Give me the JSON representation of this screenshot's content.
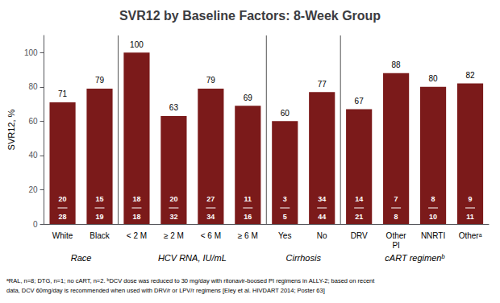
{
  "chart_data": {
    "type": "bar",
    "title": "SVR12 by Baseline Factors: 8-Week Group",
    "ylabel": "SVR12, %",
    "categories": [
      "White",
      "Black",
      "< 2 M",
      "≥ 2 M",
      "< 6 M",
      "≥ 6 M",
      "Yes",
      "No",
      "DRV",
      "Other\nPI",
      "NNRTI",
      "Otherᵃ"
    ],
    "values": [
      71,
      79,
      100,
      63,
      79,
      69,
      60,
      77,
      67,
      88,
      80,
      82
    ],
    "numerators": [
      20,
      15,
      18,
      20,
      27,
      11,
      3,
      34,
      14,
      7,
      8,
      9
    ],
    "denominators": [
      28,
      19,
      18,
      32,
      34,
      16,
      5,
      44,
      21,
      8,
      10,
      11
    ],
    "groups": [
      {
        "label": "Race",
        "categories": [
          "White",
          "Black"
        ]
      },
      {
        "label": "HCV RNA, IU/mL",
        "categories": [
          "< 2 M",
          "≥ 2 M",
          "< 6 M",
          "≥ 6 M"
        ]
      },
      {
        "label": "Cirrhosis",
        "categories": [
          "Yes",
          "No"
        ]
      },
      {
        "label": "cART regimenᵇ",
        "categories": [
          "DRV",
          "Other\nPI",
          "NNRTI",
          "Otherᵃ"
        ]
      }
    ],
    "footnote": [
      "ᵃRAL, n=8; DTG, n=1; no cART, n=2. ᵇDCV dose was reduced to 30 mg/day with ritonavir-boosed PI regimens in ALLY-2; based on recent",
      "data, DCV 60mg/day is recommended when used with DRV/r or LPV/r regimens [Eley et al. HIVDART 2014; Poster 63]"
    ],
    "color": "#7B1A1A",
    "ylim": [
      0,
      110
    ],
    "yticks": [
      0,
      20,
      40,
      60,
      80,
      100
    ],
    "data_labels": true,
    "grid": false
  }
}
